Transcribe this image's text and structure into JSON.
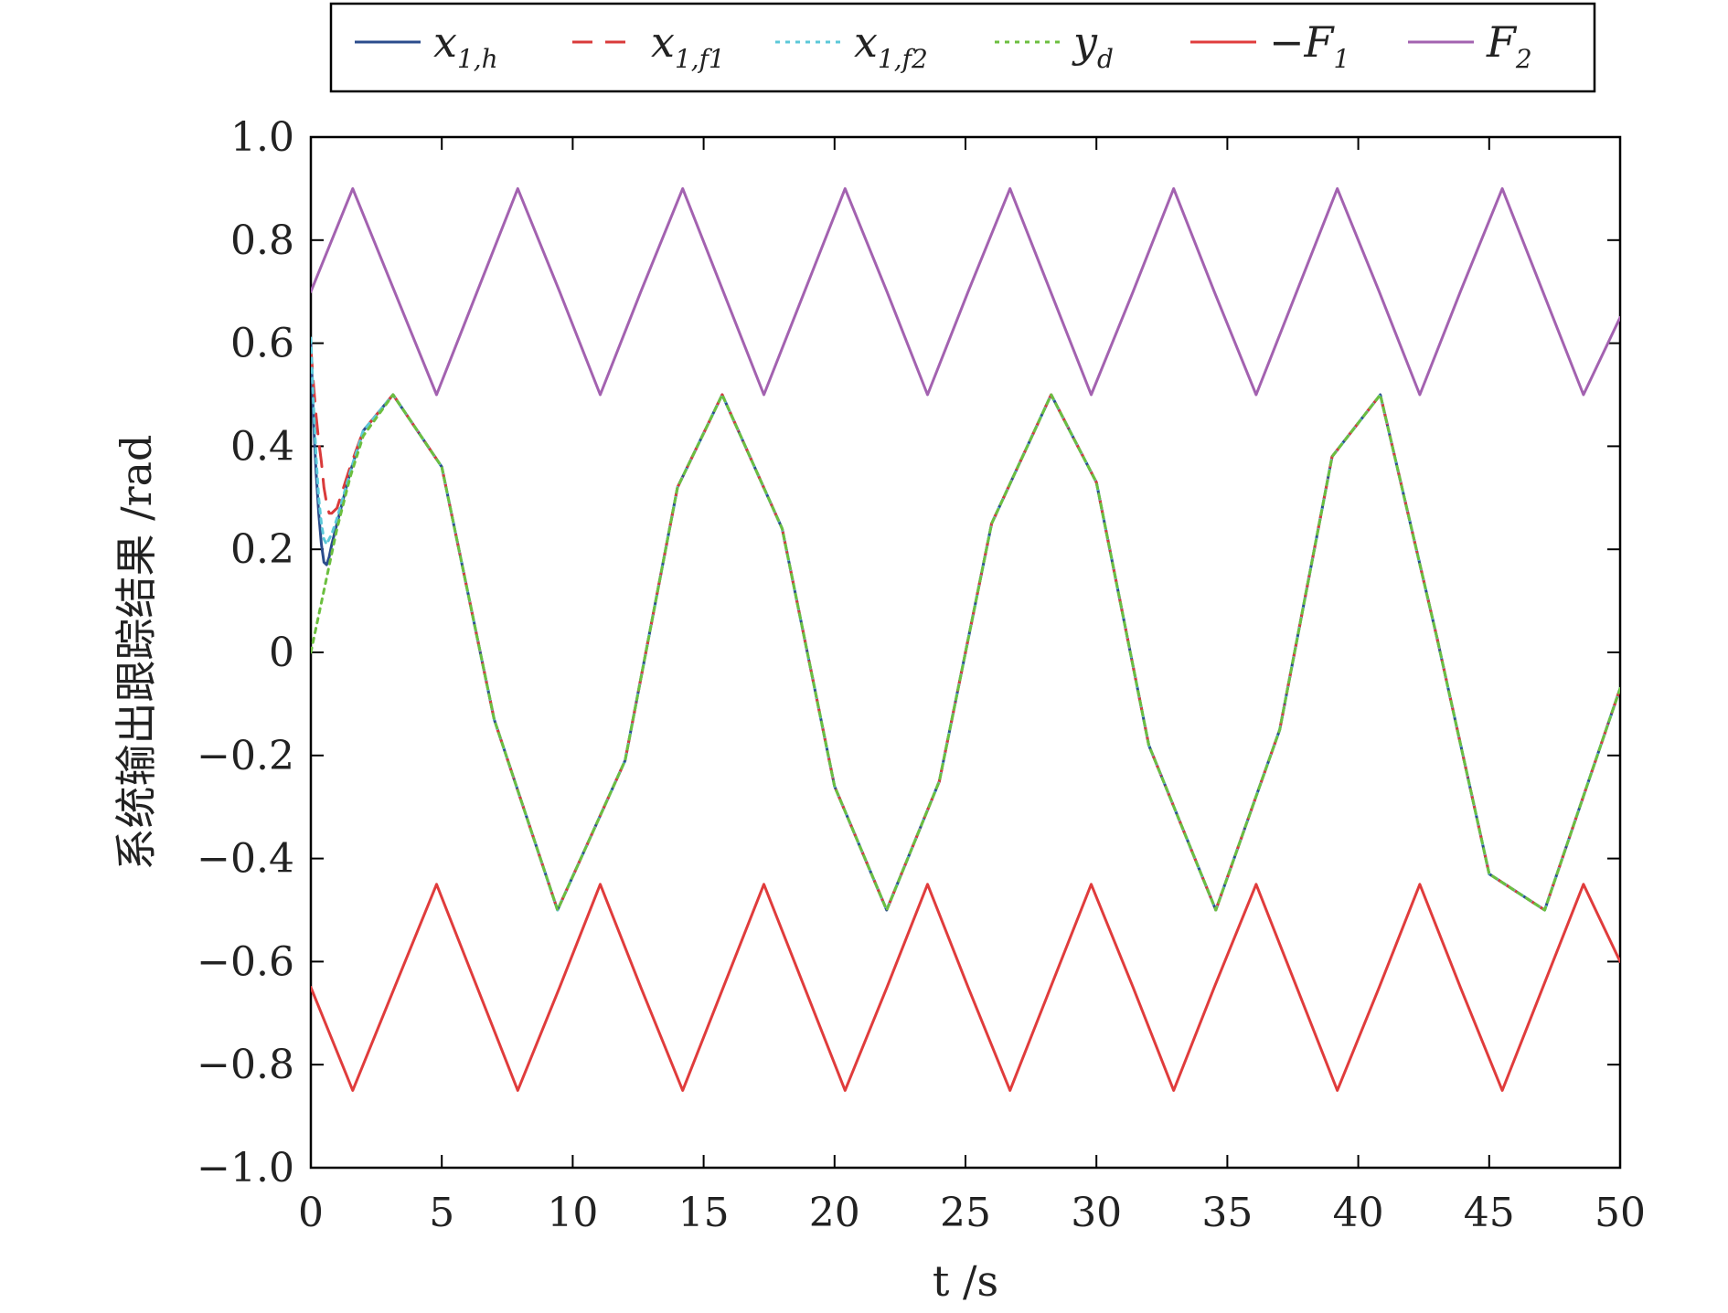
{
  "chart_data": {
    "type": "line",
    "xlabel": "t /s",
    "ylabel": "系统输出跟踪结果 /rad",
    "xlim": [
      0,
      50
    ],
    "ylim": [
      -1.0,
      1.0
    ],
    "xticks": [
      0,
      5,
      10,
      15,
      20,
      25,
      30,
      35,
      40,
      45,
      50
    ],
    "xtick_labels": [
      "0",
      "5",
      "10",
      "15",
      "20",
      "25",
      "30",
      "35",
      "40",
      "45",
      "50"
    ],
    "yticks": [
      -1.0,
      -0.8,
      -0.6,
      -0.4,
      -0.2,
      0,
      0.2,
      0.4,
      0.6,
      0.8,
      1.0
    ],
    "ytick_labels": [
      "−1.0",
      "−0.8",
      "−0.6",
      "−0.4",
      "−0.2",
      "0",
      "0.2",
      "0.4",
      "0.6",
      "0.8",
      "1.0"
    ],
    "grid": false,
    "legend_position": "top, above the plot",
    "series": [
      {
        "name": "x1,h",
        "label_main": "x",
        "label_sub": "1,h",
        "color": "#2b4c8c",
        "style": "solid",
        "x": [
          0,
          0.1,
          0.2,
          0.3,
          0.4,
          0.5,
          0.6,
          0.7,
          0.8,
          1.0,
          1.5,
          2.0,
          3.14,
          5,
          7,
          9.42,
          12,
          14,
          15.71,
          18,
          20,
          21.99,
          24,
          26,
          28.27,
          30,
          32,
          34.56,
          37,
          39,
          40.84,
          43,
          45,
          47.12,
          50
        ],
        "y": [
          0.6,
          0.45,
          0.35,
          0.27,
          0.21,
          0.175,
          0.17,
          0.185,
          0.21,
          0.25,
          0.35,
          0.43,
          0.5,
          0.36,
          -0.13,
          -0.5,
          -0.21,
          0.32,
          0.5,
          0.24,
          -0.26,
          -0.5,
          -0.25,
          0.25,
          0.5,
          0.33,
          -0.18,
          -0.5,
          -0.15,
          0.38,
          0.5,
          0.03,
          -0.43,
          -0.5,
          -0.07
        ]
      },
      {
        "name": "x1,f1",
        "label_main": "x",
        "label_sub": "1,f1",
        "color": "#d93a3a",
        "style": "dashed",
        "x": [
          0,
          0.1,
          0.2,
          0.3,
          0.4,
          0.5,
          0.6,
          0.7,
          0.8,
          1.0,
          1.5,
          2.0,
          3.14,
          5,
          7,
          9.42,
          12,
          14,
          15.71,
          18,
          20,
          21.99,
          24,
          26,
          28.27,
          30,
          32,
          34.56,
          37,
          39,
          40.84,
          43,
          45,
          47.12,
          50
        ],
        "y": [
          0.59,
          0.52,
          0.46,
          0.41,
          0.37,
          0.32,
          0.29,
          0.27,
          0.27,
          0.28,
          0.36,
          0.43,
          0.5,
          0.36,
          -0.13,
          -0.5,
          -0.21,
          0.32,
          0.5,
          0.24,
          -0.26,
          -0.5,
          -0.25,
          0.25,
          0.5,
          0.33,
          -0.18,
          -0.5,
          -0.15,
          0.38,
          0.5,
          0.03,
          -0.43,
          -0.5,
          -0.07
        ]
      },
      {
        "name": "x1,f2",
        "label_main": "x",
        "label_sub": "1,f2",
        "color": "#5bc8d8",
        "style": "dotted",
        "x": [
          0,
          0.1,
          0.2,
          0.3,
          0.4,
          0.5,
          0.6,
          0.7,
          0.8,
          1.0,
          1.5,
          2.0,
          3.14,
          5,
          7,
          9.42,
          12,
          14,
          15.71,
          18,
          20,
          21.99,
          24,
          26,
          28.27,
          30,
          32,
          34.56,
          37,
          39,
          40.84,
          43,
          45,
          47.12,
          50
        ],
        "y": [
          0.61,
          0.48,
          0.38,
          0.3,
          0.25,
          0.22,
          0.21,
          0.22,
          0.23,
          0.26,
          0.35,
          0.43,
          0.5,
          0.36,
          -0.13,
          -0.5,
          -0.21,
          0.32,
          0.5,
          0.24,
          -0.26,
          -0.5,
          -0.25,
          0.25,
          0.5,
          0.33,
          -0.18,
          -0.5,
          -0.15,
          0.38,
          0.5,
          0.03,
          -0.43,
          -0.5,
          -0.07
        ]
      },
      {
        "name": "yd",
        "label_main": "y",
        "label_sub": "d",
        "color": "#6cbf3f",
        "style": "dotted",
        "x": [
          0,
          0.5,
          1.0,
          1.5,
          2.0,
          3.14,
          5,
          7,
          9.42,
          12,
          14,
          15.71,
          18,
          20,
          21.99,
          24,
          26,
          28.27,
          30,
          32,
          34.56,
          37,
          39,
          40.84,
          43,
          45,
          47.12,
          50
        ],
        "y": [
          0,
          0.12,
          0.24,
          0.34,
          0.42,
          0.5,
          0.36,
          -0.13,
          -0.5,
          -0.21,
          0.32,
          0.5,
          0.24,
          -0.26,
          -0.5,
          -0.25,
          0.25,
          0.5,
          0.33,
          -0.18,
          -0.5,
          -0.15,
          0.38,
          0.5,
          0.03,
          -0.43,
          -0.5,
          -0.07
        ]
      },
      {
        "name": "−F1",
        "label_main": "−F",
        "label_sub": "1",
        "color": "#e03c3c",
        "style": "solid",
        "x": [
          0,
          1.6,
          3.2,
          4.8,
          6.35,
          7.9,
          9.5,
          11.05,
          12.6,
          14.2,
          15.75,
          17.3,
          18.85,
          20.4,
          22.0,
          23.55,
          25.1,
          26.7,
          28.25,
          29.8,
          31.4,
          32.95,
          34.5,
          36.1,
          37.65,
          39.2,
          40.8,
          42.35,
          43.9,
          45.5,
          47.05,
          48.6,
          50
        ],
        "y": [
          -0.65,
          -0.85,
          -0.65,
          -0.45,
          -0.65,
          -0.85,
          -0.65,
          -0.45,
          -0.65,
          -0.85,
          -0.65,
          -0.45,
          -0.65,
          -0.85,
          -0.65,
          -0.45,
          -0.65,
          -0.85,
          -0.65,
          -0.45,
          -0.65,
          -0.85,
          -0.65,
          -0.45,
          -0.65,
          -0.85,
          -0.65,
          -0.45,
          -0.65,
          -0.85,
          -0.65,
          -0.45,
          -0.6
        ]
      },
      {
        "name": "F2",
        "label_main": "F",
        "label_sub": "2",
        "color": "#a362b0",
        "style": "solid",
        "x": [
          0,
          1.6,
          3.2,
          4.8,
          6.35,
          7.9,
          9.5,
          11.05,
          12.6,
          14.2,
          15.75,
          17.3,
          18.85,
          20.4,
          22.0,
          23.55,
          25.1,
          26.7,
          28.25,
          29.8,
          31.4,
          32.95,
          34.5,
          36.1,
          37.65,
          39.2,
          40.8,
          42.35,
          43.9,
          45.5,
          47.05,
          48.6,
          50
        ],
        "y": [
          0.7,
          0.9,
          0.7,
          0.5,
          0.7,
          0.9,
          0.7,
          0.5,
          0.7,
          0.9,
          0.7,
          0.5,
          0.7,
          0.9,
          0.7,
          0.5,
          0.7,
          0.9,
          0.7,
          0.5,
          0.7,
          0.9,
          0.7,
          0.5,
          0.7,
          0.9,
          0.7,
          0.5,
          0.7,
          0.9,
          0.7,
          0.5,
          0.65
        ]
      }
    ]
  }
}
